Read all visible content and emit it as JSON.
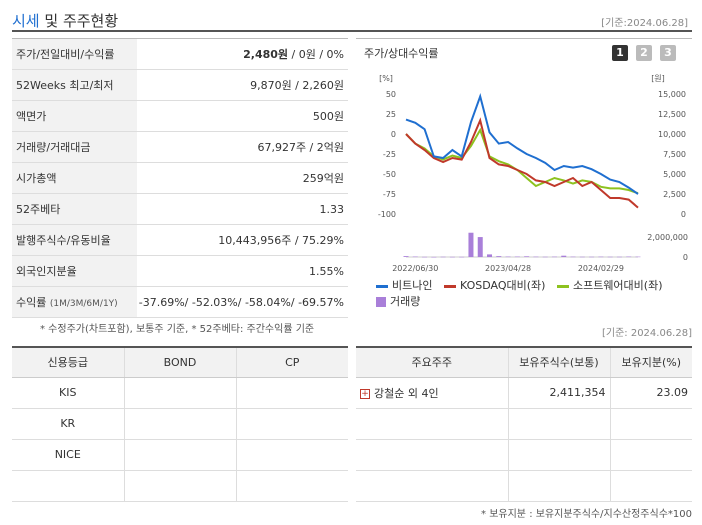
{
  "header": {
    "title_part1": "시세",
    "title_part2": " 및 주주현황",
    "date": "[기준:2024.06.28]"
  },
  "market_table": [
    {
      "key": "주가/전일대비/수익률",
      "value_main": "2,480원",
      "value_rest": " / 0원 / 0%"
    },
    {
      "key": "52Weeks 최고/최저",
      "value": "9,870원 / 2,260원"
    },
    {
      "key": "액면가",
      "value": "500원"
    },
    {
      "key": "거래량/거래대금",
      "value": "67,927주 / 2억원"
    },
    {
      "key": "시가총액",
      "value": "259억원"
    },
    {
      "key": "52주베타",
      "value": "1.33"
    },
    {
      "key": "발행주식수/유동비율",
      "value": "10,443,956주 / 75.29%"
    },
    {
      "key": "외국인지분율",
      "value": "1.55%"
    },
    {
      "key": "수익률",
      "key_sub": "(1M/3M/6M/1Y)",
      "value": "-37.69%/ -52.03%/ -58.04%/ -69.57%"
    }
  ],
  "note1": "* 수정주가(차트포함), 보통주 기준, * 52주베타: 주간수익률 기준",
  "chart_box": {
    "title": "주가/상대수익률",
    "pages": [
      "1",
      "2",
      "3"
    ]
  },
  "chart_data": {
    "type": "line",
    "left_unit": "[%]",
    "right_unit": "[원]",
    "left_ticks": [
      "50",
      "25",
      "0",
      "-25",
      "-50",
      "-75",
      "-100"
    ],
    "right_ticks": [
      "15,000",
      "12,500",
      "10,000",
      "7,500",
      "5,000",
      "2,500",
      "0"
    ],
    "volume_ticks": [
      "2,000,000",
      "0"
    ],
    "x_labels": [
      "2022/06/30",
      "2023/04/28",
      "2024/02/29"
    ],
    "series": [
      {
        "name": "비트나인",
        "color": "#1f6fd0",
        "values": [
          18,
          14,
          6,
          -28,
          -30,
          -20,
          -28,
          15,
          47,
          2,
          -12,
          -10,
          -18,
          -25,
          -30,
          -36,
          -45,
          -40,
          -42,
          -40,
          -44,
          -50,
          -57,
          -60,
          -67,
          -75
        ]
      },
      {
        "name": "KOSDAQ대비(좌)",
        "color": "#c0392b",
        "values": [
          0,
          -12,
          -20,
          -30,
          -35,
          -30,
          -32,
          -10,
          17,
          -30,
          -38,
          -40,
          -45,
          -50,
          -58,
          -60,
          -65,
          -60,
          -55,
          -65,
          -60,
          -70,
          -80,
          -80,
          -82,
          -92
        ]
      },
      {
        "name": "소프트웨어대비(좌)",
        "color": "#8dc21f",
        "values": [
          0,
          -12,
          -18,
          -28,
          -32,
          -27,
          -30,
          -15,
          5,
          -28,
          -34,
          -38,
          -45,
          -55,
          -65,
          -60,
          -55,
          -58,
          -62,
          -58,
          -60,
          -66,
          -68,
          -68,
          -70,
          -74
        ]
      }
    ],
    "volume": {
      "name": "거래량",
      "color": "#a97fd9",
      "values": [
        100000,
        50000,
        20000,
        10000,
        30000,
        20000,
        20000,
        2800000,
        2300000,
        300000,
        100000,
        50000,
        50000,
        80000,
        40000,
        30000,
        40000,
        150000,
        40000,
        30000,
        30000,
        40000,
        30000,
        30000,
        50000,
        40000
      ]
    },
    "ylim_left": [
      -100,
      50
    ],
    "ylim_volume": [
      0,
      3000000
    ]
  },
  "date2": "[기준: 2024.06.28]",
  "credit_table": {
    "headers": [
      "신용등급",
      "BOND",
      "CP"
    ],
    "rows": [
      [
        "KIS",
        "",
        ""
      ],
      [
        "KR",
        "",
        ""
      ],
      [
        "NICE",
        "",
        ""
      ],
      [
        "",
        "",
        ""
      ]
    ]
  },
  "holder_table": {
    "headers": [
      "주요주주",
      "보유주식수(보통)",
      "보유지분(%)"
    ],
    "rows": [
      [
        "강철순 외 4인",
        "2,411,354",
        "23.09"
      ],
      [
        "",
        "",
        ""
      ],
      [
        "",
        "",
        ""
      ],
      [
        "",
        "",
        ""
      ]
    ]
  },
  "note2": "* 보유지분 : 보유지분주식수/지수산정주식수*100"
}
